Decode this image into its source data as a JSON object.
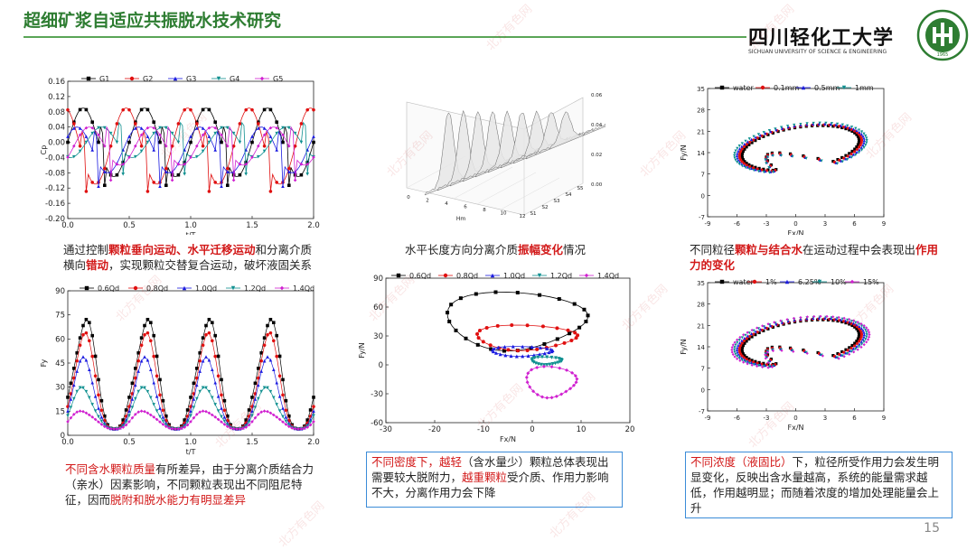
{
  "header": {
    "title": "超细矿浆自适应共振脱水技术研究",
    "page_number": "15"
  },
  "logo": {
    "name": "四川轻化工大学",
    "sub": "SICHUAN UNIVERSITY OF SCIENCE & ENGINEERING",
    "seal_text": "四川轻化工大学",
    "seal_year": "1965"
  },
  "watermark": "北方有色网",
  "captions": {
    "c1": {
      "a": "通过控制",
      "b": "颗粒垂向运动、水平迁移运动",
      "c": "和分离介质横向",
      "d": "错动",
      "e": "，实现颗粒交替复合运动，破坏液固关系"
    },
    "c2": {
      "a": "水平长度方向分离介质",
      "b": "振幅变化",
      "c": "情况"
    },
    "c3": {
      "a": "不同粒径",
      "b": "颗粒与结合水",
      "c": "在运动过程中会表现出",
      "d": "作用力的变化"
    },
    "c4": {
      "a": "不同含水颗粒质量",
      "b": "有所差异，由于分离介质结合力（亲水）因素影响，不同颗粒表现出不同阻尼特征，因而",
      "c": "脱附和脱水能力有明显差异"
    },
    "c5": {
      "a": "不同密度下，越轻",
      "b": "（含水量少）颗粒总体表现出需要较大脱附力，",
      "c": "越重颗粒",
      "d": "受介质、作用力影响不大，分离作用力会下降"
    },
    "c6": {
      "a": "不同浓度（液固比）",
      "b": "下，粒径所受作用力会发生明显变化，反映出含水量越高，系统的能量需求越低，作用越明显；而随着浓度的增加处理能量会上升"
    }
  },
  "chart_data": [
    {
      "type": "line",
      "ylabel": "Cp",
      "xlabel": "t/T",
      "xlim": [
        0,
        2
      ],
      "ylim": [
        -0.2,
        0.16
      ],
      "xticks": [
        "0.0",
        "0.5",
        "1.0",
        "1.5",
        "2.0"
      ],
      "yticks": [
        "0.16",
        "0.12",
        "0.08",
        "0.04",
        "0.00",
        "-0.04",
        "-0.08",
        "-0.12",
        "-0.16",
        "-0.20"
      ],
      "series": [
        {
          "name": "G1",
          "color": "#000000",
          "marker": "square",
          "amp": 0.09,
          "phase": 0.0,
          "offset": 0.0
        },
        {
          "name": "G2",
          "color": "#e01010",
          "marker": "circle",
          "amp": 0.1,
          "phase": 0.15,
          "offset": -0.01
        },
        {
          "name": "G3",
          "color": "#1a1ae0",
          "marker": "triangle",
          "amp": 0.06,
          "phase": 0.55,
          "offset": -0.02
        },
        {
          "name": "G4",
          "color": "#109090",
          "marker": "triangle-down",
          "amp": 0.04,
          "phase": 0.35,
          "offset": 0.0
        },
        {
          "name": "G5",
          "color": "#d020d0",
          "marker": "diamond",
          "amp": 0.05,
          "phase": 0.45,
          "offset": -0.01
        }
      ]
    },
    {
      "type": "surface",
      "zticks": [
        "0.00",
        "0.02",
        "0.04",
        "0.06"
      ],
      "xticks": [
        "0",
        "2",
        "4",
        "6",
        "8",
        "10",
        "12"
      ],
      "yticks": [
        "S1",
        "S2",
        "S3",
        "S4",
        "S5"
      ],
      "xlabel": "Hm"
    },
    {
      "type": "scatter",
      "xlabel": "Fx/N",
      "ylabel": "Fy/N",
      "xlim": [
        -9,
        9
      ],
      "ylim": [
        -7,
        35
      ],
      "xticks": [
        "-9",
        "-6",
        "-3",
        "0",
        "3",
        "6",
        "9"
      ],
      "yticks": [
        "35",
        "28",
        "21",
        "14",
        "7",
        "0",
        "-7"
      ],
      "series": [
        {
          "name": "water",
          "color": "#000000",
          "marker": "square",
          "scale": 0.92
        },
        {
          "name": "0.1mm",
          "color": "#e01010",
          "marker": "circle",
          "scale": 0.96
        },
        {
          "name": "0.5mm",
          "color": "#1a1ae0",
          "marker": "triangle",
          "scale": 1.0
        },
        {
          "name": "1mm",
          "color": "#109090",
          "marker": "triangle-down",
          "scale": 1.04
        }
      ]
    },
    {
      "type": "line",
      "xlabel": "t/T",
      "ylabel": "Fy",
      "xlim": [
        0,
        2
      ],
      "ylim": [
        0,
        90
      ],
      "xticks": [
        "0.0",
        "0.5",
        "1.0",
        "1.5",
        "2.0"
      ],
      "yticks": [
        "90",
        "75",
        "60",
        "45",
        "30",
        "15",
        "0"
      ],
      "series": [
        {
          "name": "0.6Qd",
          "color": "#000000",
          "marker": "square",
          "amp": 80
        },
        {
          "name": "0.8Qd",
          "color": "#e01010",
          "marker": "circle",
          "amp": 62
        },
        {
          "name": "1.0Qd",
          "color": "#1a1ae0",
          "marker": "triangle",
          "amp": 45
        },
        {
          "name": "1.2Qd",
          "color": "#109090",
          "marker": "triangle-down",
          "amp": 28
        },
        {
          "name": "1.4Qd",
          "color": "#d020d0",
          "marker": "diamond",
          "amp": 14
        }
      ]
    },
    {
      "type": "scatter",
      "xlabel": "Fx/N",
      "ylabel": "Fy/N",
      "xlim": [
        -30,
        20
      ],
      "ylim": [
        -60,
        90
      ],
      "xticks": [
        "-30",
        "-20",
        "-10",
        "0",
        "10",
        "20"
      ],
      "yticks": [
        "90",
        "60",
        "30",
        "0",
        "-30",
        "-60"
      ],
      "series": [
        {
          "name": "0.6Qd",
          "color": "#000000",
          "marker": "square",
          "cx": -3,
          "cy": 45,
          "rx": 14,
          "ry": 30
        },
        {
          "name": "0.8Qd",
          "color": "#e01010",
          "marker": "circle",
          "cx": -1,
          "cy": 28,
          "rx": 10,
          "ry": 13
        },
        {
          "name": "1.0Qd",
          "color": "#1a1ae0",
          "marker": "triangle",
          "cx": -2,
          "cy": 14,
          "rx": 6,
          "ry": 5
        },
        {
          "name": "1.2Qd",
          "color": "#109090",
          "marker": "triangle-down",
          "cx": 3,
          "cy": 4,
          "rx": 3,
          "ry": 4
        },
        {
          "name": "1.4Qd",
          "color": "#d020d0",
          "marker": "diamond",
          "cx": 4,
          "cy": -18,
          "rx": 5,
          "ry": 16
        }
      ]
    },
    {
      "type": "scatter",
      "xlabel": "Fx/N",
      "ylabel": "Fy/N",
      "xlim": [
        -9,
        9
      ],
      "ylim": [
        -7,
        35
      ],
      "xticks": [
        "-9",
        "-6",
        "-3",
        "0",
        "3",
        "6",
        "9"
      ],
      "yticks": [
        "35",
        "28",
        "21",
        "14",
        "7",
        "0",
        "-7"
      ],
      "series": [
        {
          "name": "water",
          "color": "#000000",
          "marker": "square",
          "scale": 0.92
        },
        {
          "name": "1%",
          "color": "#e01010",
          "marker": "circle",
          "scale": 0.96
        },
        {
          "name": "6.25%",
          "color": "#1a1ae0",
          "marker": "triangle",
          "scale": 1.0
        },
        {
          "name": "10%",
          "color": "#109090",
          "marker": "triangle-down",
          "scale": 1.04
        },
        {
          "name": "15%",
          "color": "#d020d0",
          "marker": "diamond",
          "scale": 1.08
        }
      ]
    }
  ]
}
